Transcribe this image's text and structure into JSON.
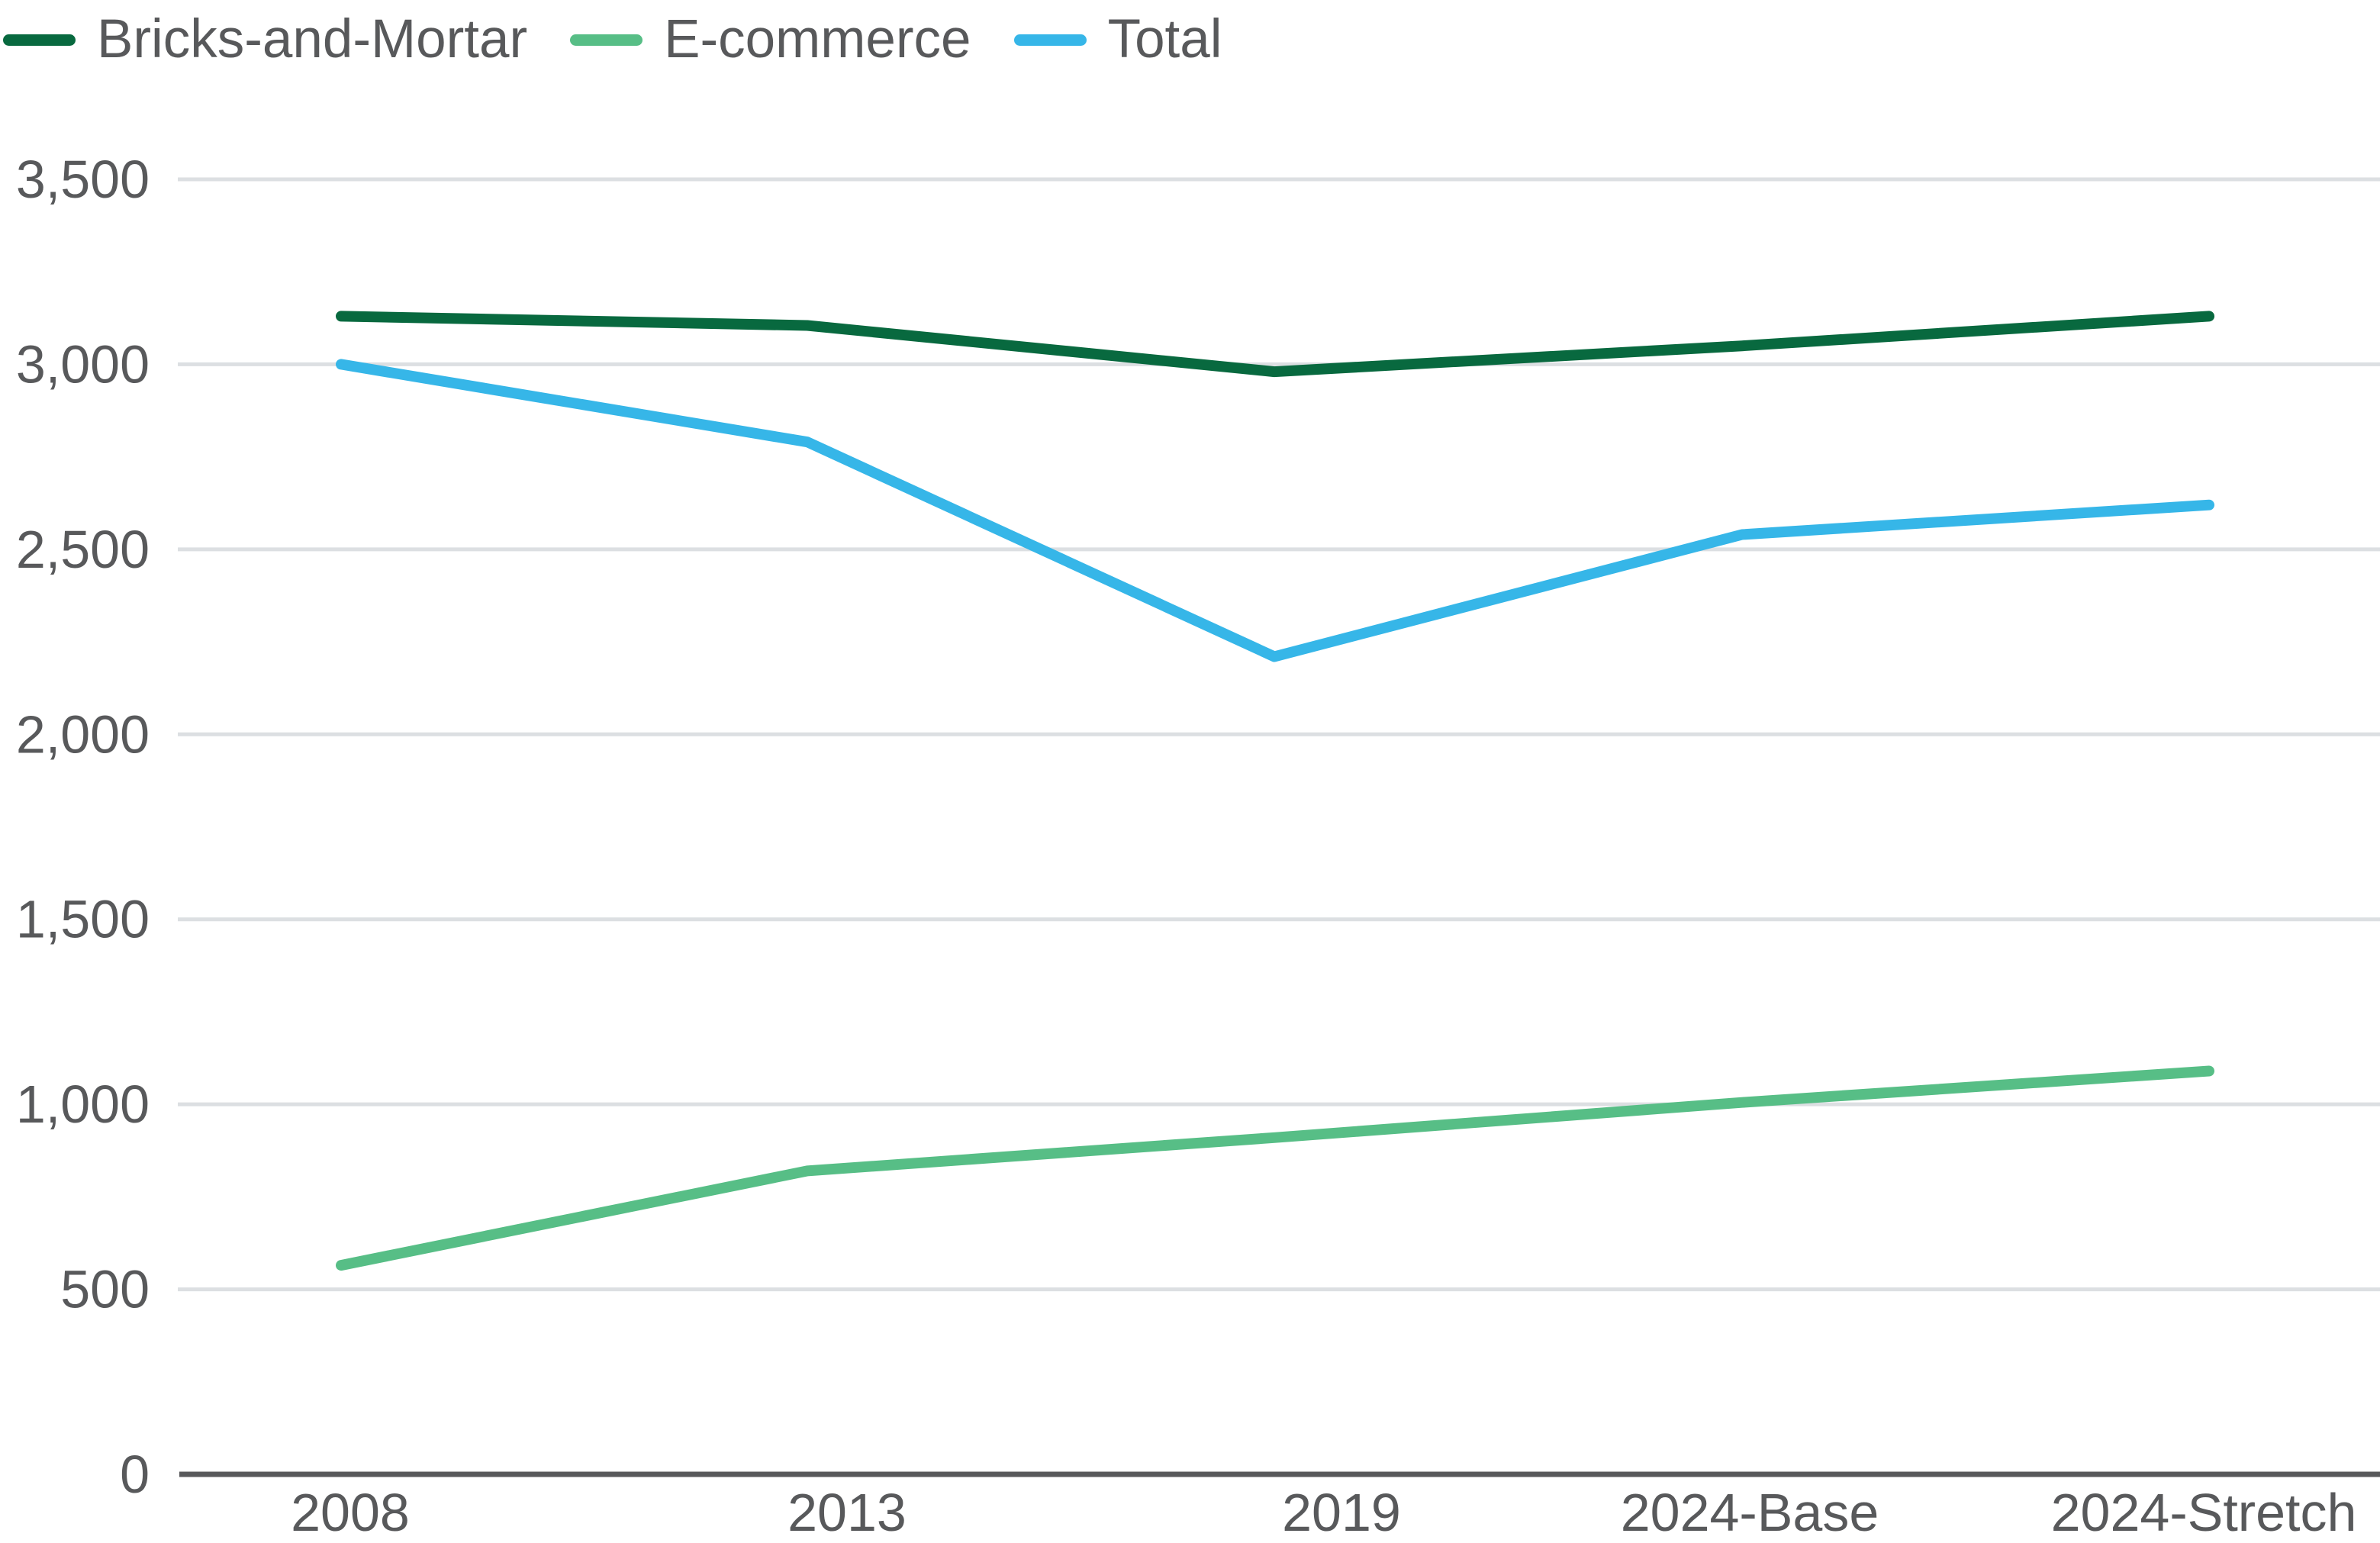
{
  "chart_data": {
    "type": "line",
    "title": "",
    "xlabel": "",
    "ylabel": "",
    "categories": [
      "2008",
      "2013",
      "2019",
      "2024-Base",
      "2024-Stretch"
    ],
    "series": [
      {
        "name": "Bricks-and-Mortar",
        "color": "#08693F",
        "values": [
          3130,
          3105,
          2980,
          3050,
          3130
        ]
      },
      {
        "name": "E-commerce",
        "color": "#57BE86",
        "values": [
          565,
          820,
          910,
          1005,
          1090
        ]
      },
      {
        "name": "Total",
        "color": "#36B6E8",
        "values": [
          3000,
          2790,
          2210,
          2540,
          2620
        ]
      }
    ],
    "ylim": [
      0,
      3500
    ],
    "ytick_step": 500,
    "ytick_labels": [
      "0",
      "500",
      "1,000",
      "1,500",
      "2,000",
      "2,500",
      "3,000",
      "3,500"
    ],
    "grid": true,
    "legend_position": "top-left"
  },
  "colors": {
    "background": "#FFFFFF",
    "gridline": "#DCDFE2",
    "axis": "#58595B",
    "text": "#58595B"
  }
}
